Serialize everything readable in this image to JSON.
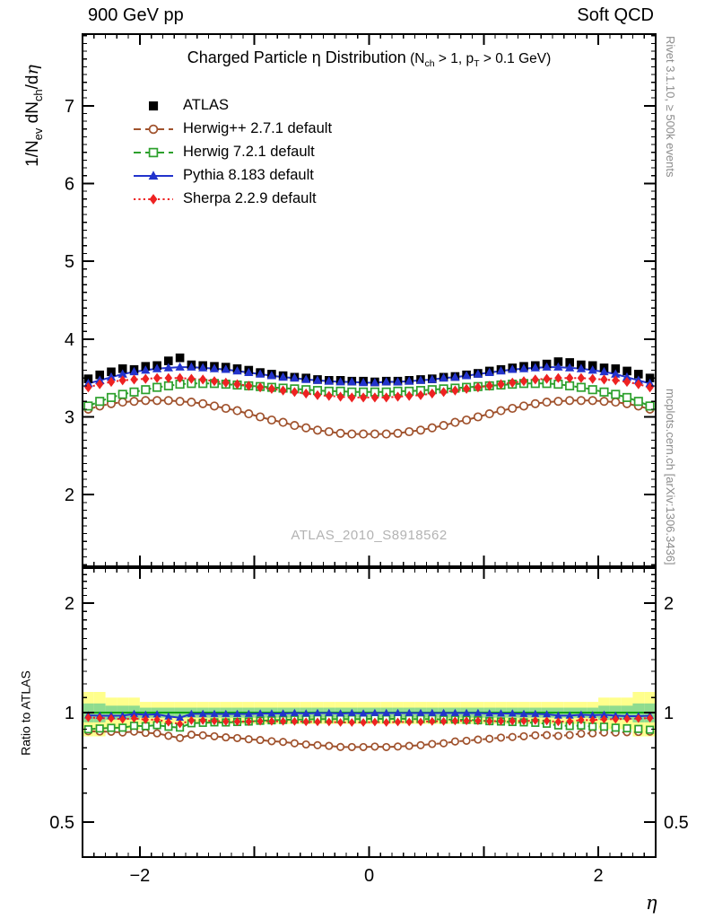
{
  "header": {
    "left": "900 GeV pp",
    "right": "Soft QCD"
  },
  "title": {
    "main": "Charged Particle η Distribution",
    "cond_pre": "(N",
    "cond_sub1": "ch",
    "cond_mid": " > 1, p",
    "cond_sub2": "T",
    "cond_post": " > 0.1 GeV)"
  },
  "ylabel": {
    "p1": "1/N",
    "s1": "ev",
    "p2": " dN",
    "s2": "ch",
    "p3": "/d",
    "p4": "η"
  },
  "ratio_ylabel": "Ratio to ATLAS",
  "xlabel": "η",
  "watermark": "ATLAS_2010_S8918562",
  "side_notes": {
    "top": "Rivet 3.1.10, ≥ 500k events",
    "bottom": "mcplots.cern.ch [arXiv:1306.3436]"
  },
  "chart_data": {
    "type": "line",
    "title_text": "Charged Particle η Distribution (N_ch > 1, p_T > 0.1 GeV)",
    "xlabel": "η",
    "ylabel": "1/N_ev dN_ch/dη",
    "ratio_ylabel": "Ratio to ATLAS",
    "legend_position": "top-left",
    "bin_width": 0.1,
    "main_axis": {
      "xlim": [
        -2.5,
        2.5
      ],
      "ylim": [
        1.08,
        7.92
      ],
      "yticks": [
        {
          "v": 2,
          "label": "2"
        },
        {
          "v": 3,
          "label": "3"
        },
        {
          "v": 4,
          "label": "4"
        },
        {
          "v": 5,
          "label": "5"
        },
        {
          "v": 6,
          "label": "6"
        },
        {
          "v": 7,
          "label": "7"
        }
      ],
      "xticks": [
        {
          "v": -2,
          "label": "−2"
        },
        {
          "v": 0,
          "label": "0"
        },
        {
          "v": 2,
          "label": "2"
        }
      ]
    },
    "ratio_axis": {
      "log": true,
      "ylim": [
        0.4,
        2.5
      ],
      "yticks": [
        {
          "v": 2,
          "label": "2"
        },
        {
          "v": 1,
          "label": "1"
        },
        {
          "v": 0.5,
          "label": "0.5"
        }
      ]
    },
    "x": [
      -2.45,
      -2.35,
      -2.25,
      -2.15,
      -2.05,
      -1.95,
      -1.85,
      -1.75,
      -1.65,
      -1.55,
      -1.45,
      -1.35,
      -1.25,
      -1.15,
      -1.05,
      -0.95,
      -0.85,
      -0.75,
      -0.65,
      -0.55,
      -0.45,
      -0.35,
      -0.25,
      -0.15,
      -0.05,
      0.05,
      0.15,
      0.25,
      0.35,
      0.45,
      0.55,
      0.65,
      0.75,
      0.85,
      0.95,
      1.05,
      1.15,
      1.25,
      1.35,
      1.45,
      1.55,
      1.65,
      1.75,
      1.85,
      1.95,
      2.05,
      2.15,
      2.25,
      2.35,
      2.45
    ],
    "series": [
      {
        "name": "ATLAS",
        "role": "data",
        "color": "#000000",
        "marker": "square",
        "filled": true,
        "line": "none",
        "values": [
          3.49,
          3.54,
          3.58,
          3.62,
          3.61,
          3.65,
          3.66,
          3.72,
          3.76,
          3.67,
          3.66,
          3.65,
          3.64,
          3.62,
          3.6,
          3.57,
          3.55,
          3.53,
          3.51,
          3.5,
          3.48,
          3.47,
          3.47,
          3.46,
          3.46,
          3.45,
          3.46,
          3.46,
          3.47,
          3.48,
          3.49,
          3.51,
          3.52,
          3.54,
          3.56,
          3.59,
          3.61,
          3.63,
          3.65,
          3.66,
          3.68,
          3.71,
          3.7,
          3.67,
          3.66,
          3.63,
          3.62,
          3.59,
          3.55,
          3.5
        ]
      },
      {
        "name": "Herwig++ 2.7.1 default",
        "role": "mc",
        "color": "#a0522d",
        "marker": "circle",
        "filled": false,
        "line": "dashed",
        "values": [
          3.1,
          3.14,
          3.17,
          3.19,
          3.2,
          3.21,
          3.21,
          3.21,
          3.2,
          3.19,
          3.17,
          3.14,
          3.11,
          3.08,
          3.04,
          3.0,
          2.96,
          2.93,
          2.89,
          2.86,
          2.83,
          2.81,
          2.79,
          2.78,
          2.78,
          2.78,
          2.78,
          2.79,
          2.81,
          2.83,
          2.86,
          2.89,
          2.93,
          2.96,
          3.0,
          3.04,
          3.08,
          3.11,
          3.14,
          3.17,
          3.19,
          3.2,
          3.21,
          3.21,
          3.21,
          3.2,
          3.19,
          3.17,
          3.14,
          3.1
        ]
      },
      {
        "name": "Herwig 7.2.1 default",
        "role": "mc",
        "color": "#2ca02c",
        "marker": "square",
        "filled": false,
        "line": "dashed",
        "values": [
          3.14,
          3.2,
          3.25,
          3.29,
          3.32,
          3.35,
          3.38,
          3.4,
          3.42,
          3.43,
          3.43,
          3.43,
          3.42,
          3.41,
          3.4,
          3.39,
          3.38,
          3.37,
          3.36,
          3.35,
          3.34,
          3.33,
          3.33,
          3.32,
          3.32,
          3.32,
          3.32,
          3.33,
          3.33,
          3.34,
          3.35,
          3.36,
          3.37,
          3.38,
          3.39,
          3.4,
          3.41,
          3.42,
          3.43,
          3.43,
          3.43,
          3.42,
          3.4,
          3.38,
          3.35,
          3.32,
          3.29,
          3.25,
          3.2,
          3.14
        ]
      },
      {
        "name": "Pythia 8.183 default",
        "role": "mc",
        "color": "#2233cc",
        "marker": "triangle",
        "filled": true,
        "line": "solid",
        "values": [
          3.43,
          3.47,
          3.51,
          3.55,
          3.58,
          3.6,
          3.62,
          3.63,
          3.64,
          3.64,
          3.63,
          3.62,
          3.61,
          3.59,
          3.57,
          3.55,
          3.53,
          3.51,
          3.5,
          3.48,
          3.47,
          3.46,
          3.45,
          3.45,
          3.44,
          3.44,
          3.45,
          3.45,
          3.46,
          3.47,
          3.48,
          3.5,
          3.51,
          3.53,
          3.55,
          3.57,
          3.59,
          3.61,
          3.62,
          3.63,
          3.64,
          3.64,
          3.63,
          3.62,
          3.6,
          3.58,
          3.55,
          3.51,
          3.47,
          3.43
        ]
      },
      {
        "name": "Sherpa 2.2.9 default",
        "role": "mc",
        "color": "#ee2222",
        "marker": "diamond",
        "filled": true,
        "line": "dotted",
        "values": [
          3.38,
          3.42,
          3.45,
          3.47,
          3.48,
          3.49,
          3.5,
          3.5,
          3.5,
          3.49,
          3.48,
          3.46,
          3.44,
          3.42,
          3.4,
          3.38,
          3.36,
          3.34,
          3.32,
          3.3,
          3.28,
          3.27,
          3.26,
          3.25,
          3.25,
          3.25,
          3.25,
          3.26,
          3.27,
          3.28,
          3.3,
          3.32,
          3.34,
          3.36,
          3.38,
          3.4,
          3.42,
          3.44,
          3.46,
          3.48,
          3.49,
          3.5,
          3.5,
          3.5,
          3.49,
          3.48,
          3.47,
          3.45,
          3.42,
          3.38
        ]
      }
    ],
    "bands": {
      "thresholds": [
        2.0,
        2.3
      ],
      "yellow": {
        "color": "#ffff8c",
        "inner": 0.07,
        "mid": 0.1,
        "outer": 0.14
      },
      "green": {
        "color": "#8fdc8f",
        "inner": 0.032,
        "mid": 0.045,
        "outer": 0.06
      },
      "ref_line_color": "#009900"
    }
  }
}
